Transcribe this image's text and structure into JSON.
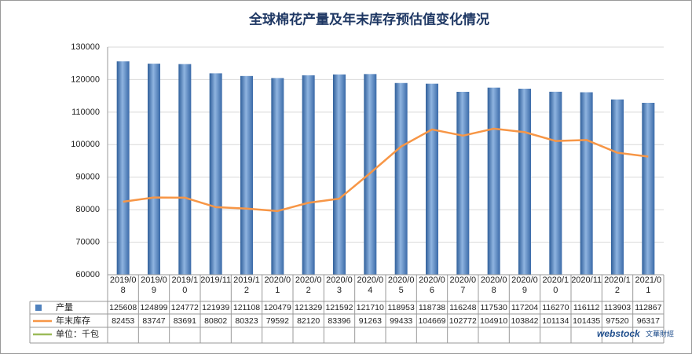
{
  "chart_data": {
    "type": "bar_line_table",
    "title": "全球棉花产量及年末库存预估值变化情况",
    "categories": [
      "2019/08",
      "2019/09",
      "2019/10",
      "2019/11",
      "2019/12",
      "2020/01",
      "2020/02",
      "2020/03",
      "2020/04",
      "2020/05",
      "2020/06",
      "2020/07",
      "2020/08",
      "2020/09",
      "2020/10",
      "2020/11",
      "2020/12",
      "2021/01"
    ],
    "series": [
      {
        "name": "产量",
        "type": "bar",
        "color": "#4f81bd",
        "values": [
          125608,
          124899,
          124772,
          121939,
          121108,
          120479,
          121329,
          121592,
          121710,
          118953,
          118738,
          116248,
          117530,
          117204,
          116270,
          116112,
          113903,
          112867
        ]
      },
      {
        "name": "年末库存",
        "type": "line",
        "color": "#f79646",
        "values": [
          82453,
          83747,
          83691,
          80802,
          80323,
          79592,
          82120,
          83396,
          91263,
          99433,
          104669,
          102772,
          104910,
          103842,
          101134,
          101435,
          97520,
          96317
        ]
      }
    ],
    "unit_legend": {
      "label": "单位：千包",
      "color": "#9bbb59"
    },
    "ylim": [
      60000,
      130000
    ],
    "yticks": [
      60000,
      70000,
      80000,
      90000,
      100000,
      110000,
      120000,
      130000
    ],
    "grid": true,
    "watermark": [
      "webstock",
      "文華財經"
    ]
  }
}
